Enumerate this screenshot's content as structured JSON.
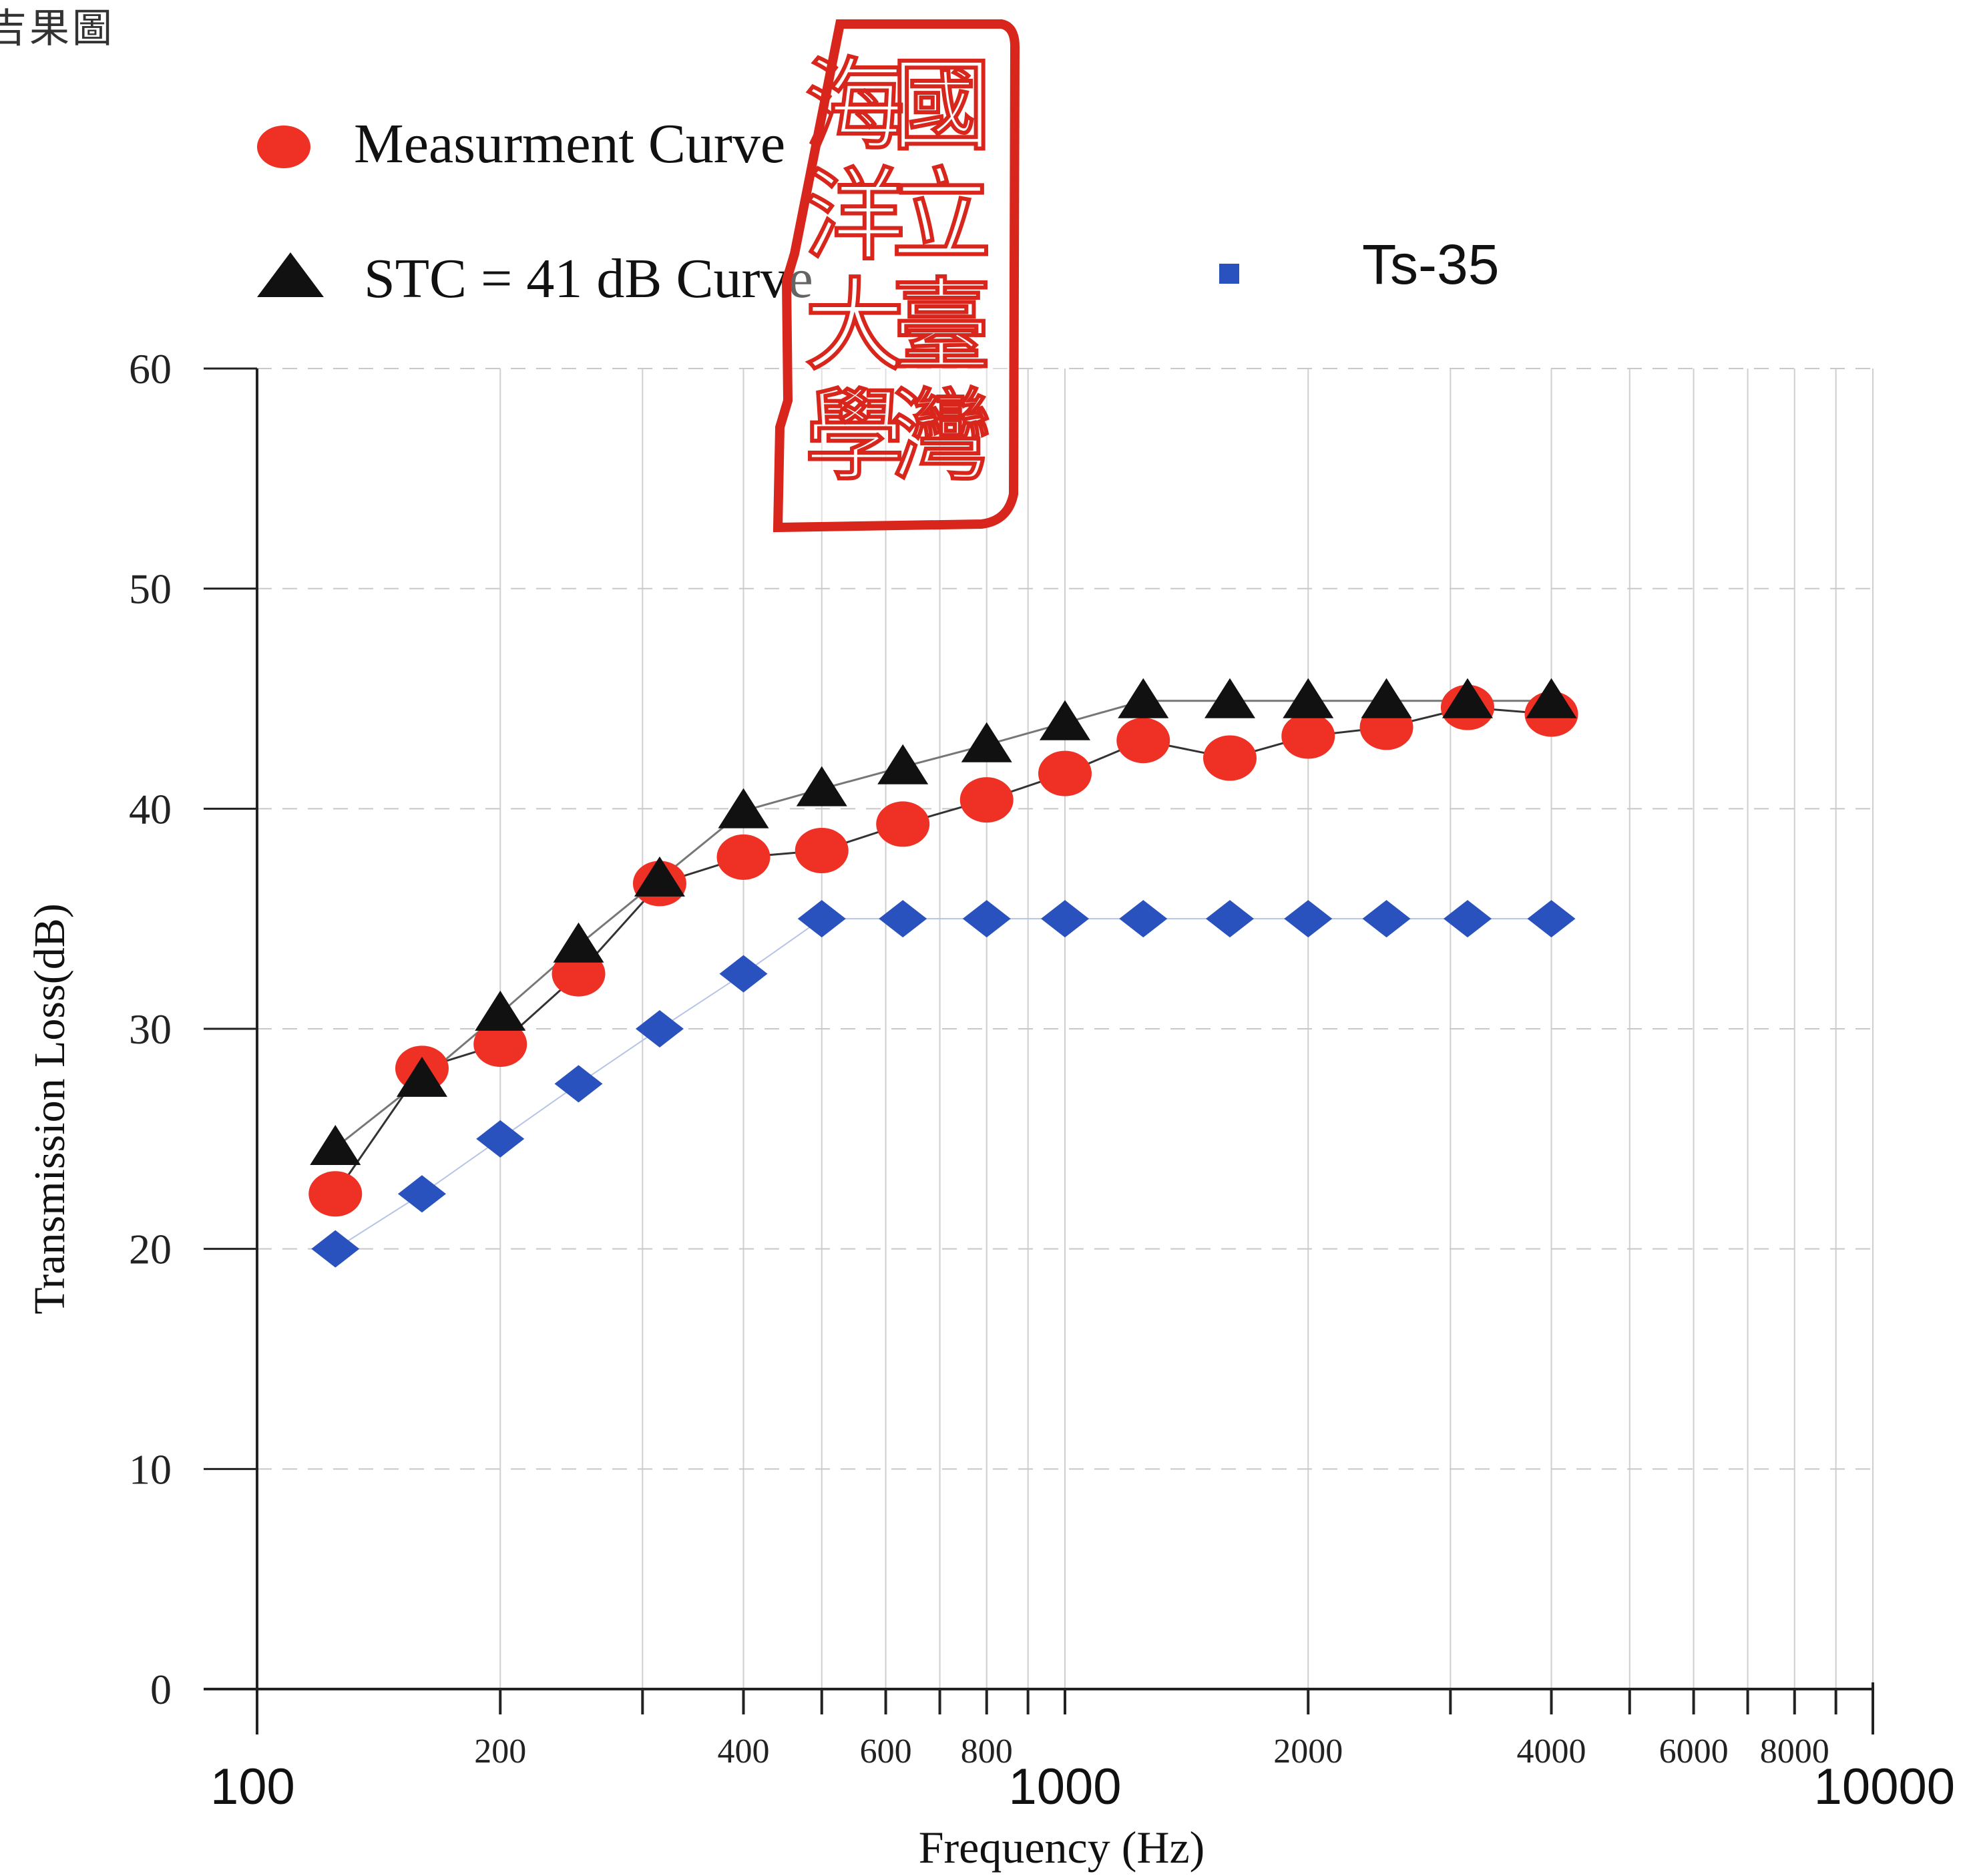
{
  "document": {
    "heading": "吉果圖"
  },
  "seal": {
    "characters": "國立臺灣海洋大學"
  },
  "chart_data": {
    "type": "line",
    "xscale": "log",
    "xlim": [
      100,
      10000
    ],
    "ylim": [
      0,
      60
    ],
    "grid": true,
    "legend_position": "top",
    "xlabel": "Frequency (Hz)",
    "ylabel": "Transmission Loss(dB)",
    "yticks": [
      "0",
      "10",
      "20",
      "30",
      "40",
      "50",
      "60"
    ],
    "xticks_major": [
      "100",
      "1000",
      "10000"
    ],
    "xticks_minor": [
      "200",
      "400",
      "600",
      "800",
      "2000",
      "4000",
      "6000",
      "8000"
    ],
    "x": [
      125,
      160,
      200,
      250,
      315,
      400,
      500,
      630,
      800,
      1000,
      1250,
      1600,
      2000,
      2500,
      3150,
      4000
    ],
    "series": [
      {
        "name": "Measurment Curve",
        "marker": "circle",
        "color": "#ee3124",
        "values": [
          22.5,
          28.2,
          29.3,
          32.5,
          36.6,
          37.8,
          38.1,
          39.3,
          40.4,
          41.6,
          43.1,
          42.3,
          43.3,
          43.7,
          44.6,
          44.3
        ]
      },
      {
        "name": "STC = 41 dB Curve",
        "marker": "triangle",
        "color": "#111111",
        "values": [
          24.6,
          27.7,
          30.7,
          33.8,
          36.8,
          39.9,
          40.9,
          41.9,
          42.9,
          43.9,
          44.9,
          44.9,
          44.9,
          44.9,
          44.9,
          44.9
        ]
      },
      {
        "name": "Ts-35",
        "marker": "diamond",
        "color": "#2a52be",
        "values": [
          20,
          22.5,
          25,
          27.5,
          30,
          32.5,
          35,
          35,
          35,
          35,
          35,
          35,
          35,
          35,
          35,
          35
        ]
      }
    ]
  }
}
